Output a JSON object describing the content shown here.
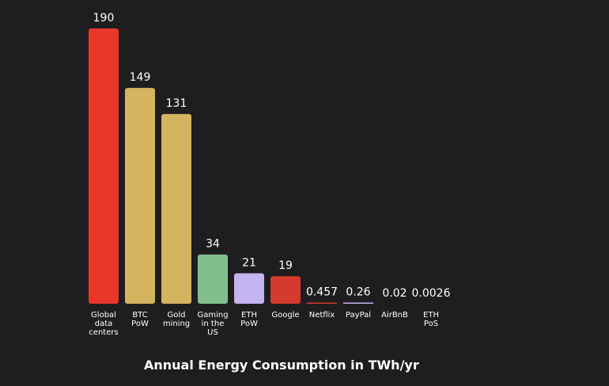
{
  "chart_data": {
    "type": "bar",
    "title": "Annual Energy Consumption in TWh/yr",
    "xlabel": "",
    "ylabel": "",
    "ylim": [
      0,
      190
    ],
    "grid": false,
    "categories": [
      [
        "Global",
        "data",
        "centers"
      ],
      [
        "BTC",
        "PoW"
      ],
      [
        "Gold",
        "mining"
      ],
      [
        "Gaming",
        "in the",
        "US"
      ],
      [
        "ETH",
        "PoW"
      ],
      [
        "Google"
      ],
      [
        "Netflix"
      ],
      [
        "PayPal"
      ],
      [
        "AirBnB"
      ],
      [
        "ETH",
        "PoS"
      ]
    ],
    "values": [
      190,
      149,
      131,
      34,
      21,
      19,
      0.457,
      0.26,
      0.02,
      0.0026
    ],
    "value_labels": [
      "190",
      "149",
      "131",
      "34",
      "21",
      "19",
      "0.457",
      "0.26",
      "0.02",
      "0.0026"
    ],
    "bar_colors": [
      "#e8382a",
      "#d4b45e",
      "#d4b45e",
      "#82bf8e",
      "#c4b4f0",
      "#d43a2e",
      "#d43a2e",
      "#c4b4f0",
      "#82bf8e",
      "#d4b45e"
    ]
  }
}
